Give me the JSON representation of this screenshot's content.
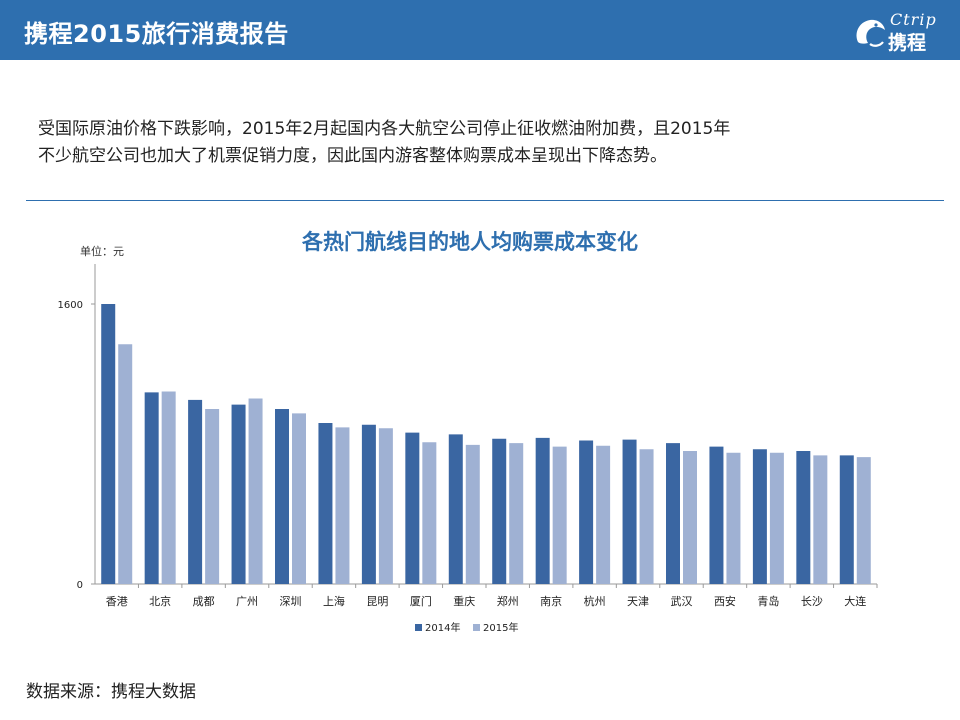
{
  "header": {
    "title": "携程2015旅行消费报告",
    "logo_en": "Ctrip",
    "logo_cn": "携程"
  },
  "intro": {
    "line1": "受国际原油价格下跌影响，2015年2月起国内各大航空公司停止征收燃油附加费，且2015年",
    "line2": "不少航空公司也加大了机票促销力度，因此国内游客整体购票成本呈现出下降态势。"
  },
  "unit_label": "单位：元",
  "source": "数据来源：携程大数据",
  "colors": {
    "header": "#2e6faf",
    "series_2014": "#3a66a2",
    "series_2015": "#9fb1d3",
    "title": "#2e6faf"
  },
  "chart_data": {
    "type": "bar",
    "title": "各热门航线目的地人均购票成本变化",
    "xlabel": "",
    "ylabel": "单位：元",
    "ylim": [
      0,
      1600
    ],
    "yticks": [
      0,
      1600
    ],
    "grid": false,
    "legend_position": "bottom",
    "categories": [
      "香港",
      "北京",
      "成都",
      "广州",
      "深圳",
      "上海",
      "昆明",
      "厦门",
      "重庆",
      "郑州",
      "南京",
      "杭州",
      "天津",
      "武汉",
      "西安",
      "青岛",
      "长沙",
      "大连"
    ],
    "series": [
      {
        "name": "2014年",
        "values": [
          1600,
          1095,
          1052,
          1025,
          1000,
          920,
          910,
          865,
          855,
          830,
          835,
          820,
          825,
          805,
          785,
          770,
          760,
          735
        ]
      },
      {
        "name": "2015年",
        "values": [
          1370,
          1100,
          1000,
          1060,
          975,
          895,
          890,
          810,
          795,
          805,
          785,
          790,
          770,
          760,
          750,
          750,
          735,
          725
        ]
      }
    ]
  }
}
